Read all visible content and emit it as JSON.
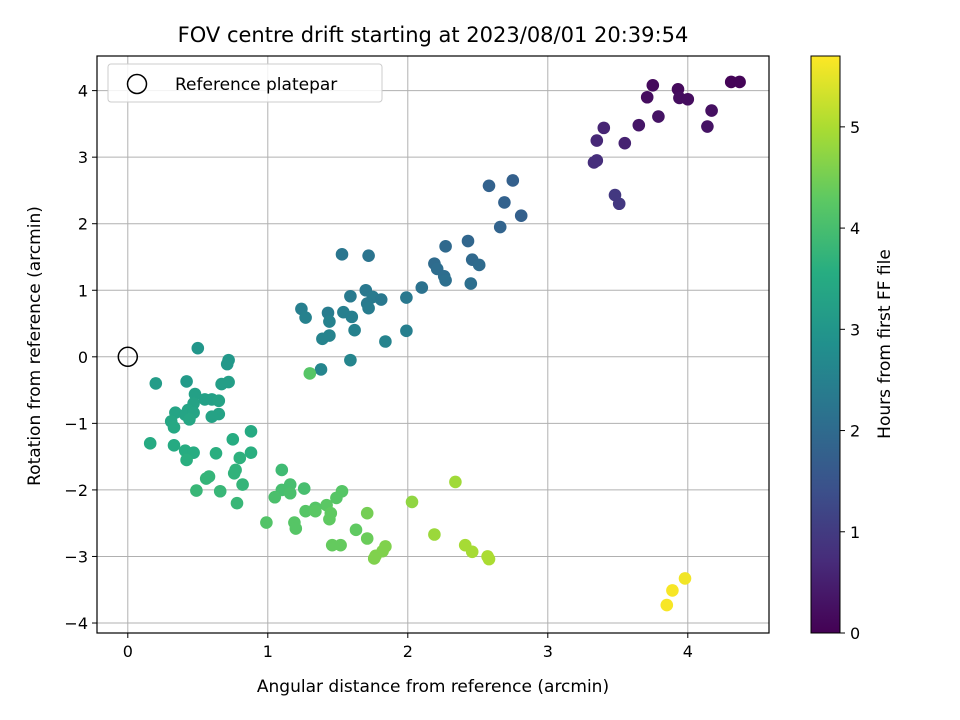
{
  "chart_data": {
    "type": "scatter",
    "title": "FOV centre drift starting at 2023/08/01 20:39:54",
    "xlabel": "Angular distance from reference (arcmin)",
    "ylabel": "Rotation from reference (arcmin)",
    "xlim": [
      -0.22,
      4.58
    ],
    "ylim": [
      -4.15,
      4.52
    ],
    "xticks": [
      0,
      1,
      2,
      3,
      4
    ],
    "yticks": [
      -4,
      -3,
      -2,
      -1,
      0,
      1,
      2,
      3,
      4
    ],
    "grid": true,
    "legend": {
      "position": "upper-left",
      "entries": [
        "Reference platepar"
      ]
    },
    "reference_point": {
      "x": 0,
      "y": 0
    },
    "colorbar": {
      "label": "Hours from first FF file",
      "min": 0,
      "max": 5.7,
      "ticks": [
        0,
        1,
        2,
        3,
        4,
        5
      ],
      "colormap": [
        "#440154",
        "#472c7a",
        "#3b518b",
        "#2c718e",
        "#21908d",
        "#27ad81",
        "#5cc863",
        "#aadc32",
        "#fde725"
      ]
    },
    "points": [
      {
        "x": 4.31,
        "y": 4.13,
        "t": 0.05
      },
      {
        "x": 4.37,
        "y": 4.13,
        "t": 0.05
      },
      {
        "x": 3.75,
        "y": 4.08,
        "t": 0.15
      },
      {
        "x": 3.93,
        "y": 4.02,
        "t": 0.15
      },
      {
        "x": 3.71,
        "y": 3.9,
        "t": 0.2
      },
      {
        "x": 3.94,
        "y": 3.89,
        "t": 0.2
      },
      {
        "x": 4.0,
        "y": 3.87,
        "t": 0.2
      },
      {
        "x": 4.17,
        "y": 3.7,
        "t": 0.25
      },
      {
        "x": 3.79,
        "y": 3.61,
        "t": 0.3
      },
      {
        "x": 3.65,
        "y": 3.48,
        "t": 0.35
      },
      {
        "x": 4.14,
        "y": 3.46,
        "t": 0.3
      },
      {
        "x": 3.4,
        "y": 3.44,
        "t": 0.6
      },
      {
        "x": 3.35,
        "y": 3.25,
        "t": 0.65
      },
      {
        "x": 3.55,
        "y": 3.21,
        "t": 0.55
      },
      {
        "x": 3.35,
        "y": 2.95,
        "t": 0.75
      },
      {
        "x": 3.33,
        "y": 2.92,
        "t": 0.75
      },
      {
        "x": 3.48,
        "y": 2.43,
        "t": 0.95
      },
      {
        "x": 3.51,
        "y": 2.3,
        "t": 0.95
      },
      {
        "x": 2.75,
        "y": 2.65,
        "t": 1.75
      },
      {
        "x": 2.58,
        "y": 2.57,
        "t": 1.8
      },
      {
        "x": 2.69,
        "y": 2.32,
        "t": 1.8
      },
      {
        "x": 2.81,
        "y": 2.12,
        "t": 1.75
      },
      {
        "x": 2.66,
        "y": 1.95,
        "t": 1.85
      },
      {
        "x": 2.43,
        "y": 1.74,
        "t": 1.9
      },
      {
        "x": 2.27,
        "y": 1.66,
        "t": 1.95
      },
      {
        "x": 1.53,
        "y": 1.54,
        "t": 2.25
      },
      {
        "x": 1.72,
        "y": 1.52,
        "t": 2.2
      },
      {
        "x": 2.46,
        "y": 1.46,
        "t": 1.95
      },
      {
        "x": 2.19,
        "y": 1.4,
        "t": 2.0
      },
      {
        "x": 2.51,
        "y": 1.38,
        "t": 2.0
      },
      {
        "x": 2.21,
        "y": 1.32,
        "t": 2.05
      },
      {
        "x": 2.26,
        "y": 1.21,
        "t": 2.05
      },
      {
        "x": 2.27,
        "y": 1.15,
        "t": 2.1
      },
      {
        "x": 2.45,
        "y": 1.1,
        "t": 2.1
      },
      {
        "x": 2.1,
        "y": 1.04,
        "t": 2.15
      },
      {
        "x": 1.7,
        "y": 1.0,
        "t": 2.3
      },
      {
        "x": 1.59,
        "y": 0.91,
        "t": 2.35
      },
      {
        "x": 1.75,
        "y": 0.9,
        "t": 2.35
      },
      {
        "x": 1.99,
        "y": 0.89,
        "t": 2.3
      },
      {
        "x": 1.81,
        "y": 0.86,
        "t": 2.3
      },
      {
        "x": 1.71,
        "y": 0.8,
        "t": 2.35
      },
      {
        "x": 1.72,
        "y": 0.73,
        "t": 2.4
      },
      {
        "x": 1.24,
        "y": 0.72,
        "t": 2.45
      },
      {
        "x": 1.54,
        "y": 0.67,
        "t": 2.45
      },
      {
        "x": 1.43,
        "y": 0.66,
        "t": 2.4
      },
      {
        "x": 1.6,
        "y": 0.6,
        "t": 2.45
      },
      {
        "x": 1.27,
        "y": 0.59,
        "t": 2.5
      },
      {
        "x": 1.44,
        "y": 0.53,
        "t": 2.5
      },
      {
        "x": 1.62,
        "y": 0.4,
        "t": 2.5
      },
      {
        "x": 1.99,
        "y": 0.39,
        "t": 2.45
      },
      {
        "x": 1.44,
        "y": 0.32,
        "t": 2.55
      },
      {
        "x": 1.39,
        "y": 0.27,
        "t": 2.55
      },
      {
        "x": 1.84,
        "y": 0.23,
        "t": 2.55
      },
      {
        "x": 1.59,
        "y": -0.05,
        "t": 2.6
      },
      {
        "x": 1.38,
        "y": -0.19,
        "t": 2.6
      },
      {
        "x": 1.3,
        "y": -0.25,
        "t": 4.2
      },
      {
        "x": 0.5,
        "y": 0.13,
        "t": 3.0
      },
      {
        "x": 0.72,
        "y": -0.05,
        "t": 3.05
      },
      {
        "x": 0.71,
        "y": -0.11,
        "t": 3.05
      },
      {
        "x": 0.2,
        "y": -0.4,
        "t": 3.15
      },
      {
        "x": 0.42,
        "y": -0.37,
        "t": 3.1
      },
      {
        "x": 0.67,
        "y": -0.41,
        "t": 3.2
      },
      {
        "x": 0.72,
        "y": -0.38,
        "t": 3.2
      },
      {
        "x": 0.48,
        "y": -0.56,
        "t": 3.25
      },
      {
        "x": 0.55,
        "y": -0.64,
        "t": 3.25
      },
      {
        "x": 0.6,
        "y": -0.64,
        "t": 3.25
      },
      {
        "x": 0.65,
        "y": -0.66,
        "t": 3.3
      },
      {
        "x": 0.47,
        "y": -0.7,
        "t": 3.3
      },
      {
        "x": 0.43,
        "y": -0.8,
        "t": 3.35
      },
      {
        "x": 0.34,
        "y": -0.84,
        "t": 3.35
      },
      {
        "x": 0.41,
        "y": -0.87,
        "t": 3.35
      },
      {
        "x": 0.47,
        "y": -0.84,
        "t": 3.35
      },
      {
        "x": 0.65,
        "y": -0.86,
        "t": 3.3
      },
      {
        "x": 0.6,
        "y": -0.9,
        "t": 3.3
      },
      {
        "x": 0.44,
        "y": -0.94,
        "t": 3.4
      },
      {
        "x": 0.31,
        "y": -0.97,
        "t": 3.4
      },
      {
        "x": 0.33,
        "y": -1.06,
        "t": 3.45
      },
      {
        "x": 0.88,
        "y": -1.12,
        "t": 3.5
      },
      {
        "x": 0.75,
        "y": -1.24,
        "t": 3.55
      },
      {
        "x": 0.16,
        "y": -1.3,
        "t": 3.5
      },
      {
        "x": 0.33,
        "y": -1.33,
        "t": 3.5
      },
      {
        "x": 0.41,
        "y": -1.41,
        "t": 3.55
      },
      {
        "x": 0.47,
        "y": -1.44,
        "t": 3.55
      },
      {
        "x": 0.88,
        "y": -1.44,
        "t": 3.6
      },
      {
        "x": 0.63,
        "y": -1.45,
        "t": 3.6
      },
      {
        "x": 0.8,
        "y": -1.52,
        "t": 3.65
      },
      {
        "x": 0.42,
        "y": -1.55,
        "t": 3.6
      },
      {
        "x": 0.77,
        "y": -1.7,
        "t": 3.7
      },
      {
        "x": 0.76,
        "y": -1.75,
        "t": 3.7
      },
      {
        "x": 0.58,
        "y": -1.8,
        "t": 3.75
      },
      {
        "x": 0.56,
        "y": -1.83,
        "t": 3.75
      },
      {
        "x": 0.82,
        "y": -1.92,
        "t": 3.75
      },
      {
        "x": 0.49,
        "y": -2.01,
        "t": 3.8
      },
      {
        "x": 0.66,
        "y": -2.02,
        "t": 3.8
      },
      {
        "x": 0.78,
        "y": -2.2,
        "t": 3.8
      },
      {
        "x": 1.1,
        "y": -1.7,
        "t": 3.9
      },
      {
        "x": 1.16,
        "y": -1.92,
        "t": 4.0
      },
      {
        "x": 1.26,
        "y": -1.98,
        "t": 4.0
      },
      {
        "x": 1.1,
        "y": -2.0,
        "t": 4.0
      },
      {
        "x": 1.16,
        "y": -2.05,
        "t": 4.05
      },
      {
        "x": 1.53,
        "y": -2.02,
        "t": 4.2
      },
      {
        "x": 1.05,
        "y": -2.11,
        "t": 4.05
      },
      {
        "x": 1.49,
        "y": -2.12,
        "t": 4.2
      },
      {
        "x": 1.42,
        "y": -2.23,
        "t": 4.25
      },
      {
        "x": 1.34,
        "y": -2.27,
        "t": 4.2
      },
      {
        "x": 1.27,
        "y": -2.32,
        "t": 4.2
      },
      {
        "x": 1.34,
        "y": -2.32,
        "t": 4.25
      },
      {
        "x": 1.45,
        "y": -2.35,
        "t": 4.3
      },
      {
        "x": 1.71,
        "y": -2.35,
        "t": 4.5
      },
      {
        "x": 1.44,
        "y": -2.44,
        "t": 4.3
      },
      {
        "x": 1.19,
        "y": -2.49,
        "t": 4.2
      },
      {
        "x": 0.99,
        "y": -2.49,
        "t": 4.15
      },
      {
        "x": 1.2,
        "y": -2.58,
        "t": 4.2
      },
      {
        "x": 1.63,
        "y": -2.6,
        "t": 4.3
      },
      {
        "x": 1.71,
        "y": -2.73,
        "t": 4.4
      },
      {
        "x": 1.46,
        "y": -2.83,
        "t": 4.35
      },
      {
        "x": 1.52,
        "y": -2.83,
        "t": 4.35
      },
      {
        "x": 1.84,
        "y": -2.85,
        "t": 4.6
      },
      {
        "x": 1.82,
        "y": -2.92,
        "t": 4.6
      },
      {
        "x": 1.77,
        "y": -2.99,
        "t": 4.6
      },
      {
        "x": 1.76,
        "y": -3.03,
        "t": 4.6
      },
      {
        "x": 2.03,
        "y": -2.18,
        "t": 4.75
      },
      {
        "x": 2.34,
        "y": -1.88,
        "t": 4.9
      },
      {
        "x": 2.19,
        "y": -2.67,
        "t": 4.85
      },
      {
        "x": 2.41,
        "y": -2.83,
        "t": 4.95
      },
      {
        "x": 2.46,
        "y": -2.93,
        "t": 4.95
      },
      {
        "x": 2.57,
        "y": -3.0,
        "t": 5.0
      },
      {
        "x": 2.58,
        "y": -3.04,
        "t": 5.0
      },
      {
        "x": 3.98,
        "y": -3.33,
        "t": 5.6
      },
      {
        "x": 3.89,
        "y": -3.51,
        "t": 5.65
      },
      {
        "x": 3.85,
        "y": -3.73,
        "t": 5.65
      }
    ]
  }
}
